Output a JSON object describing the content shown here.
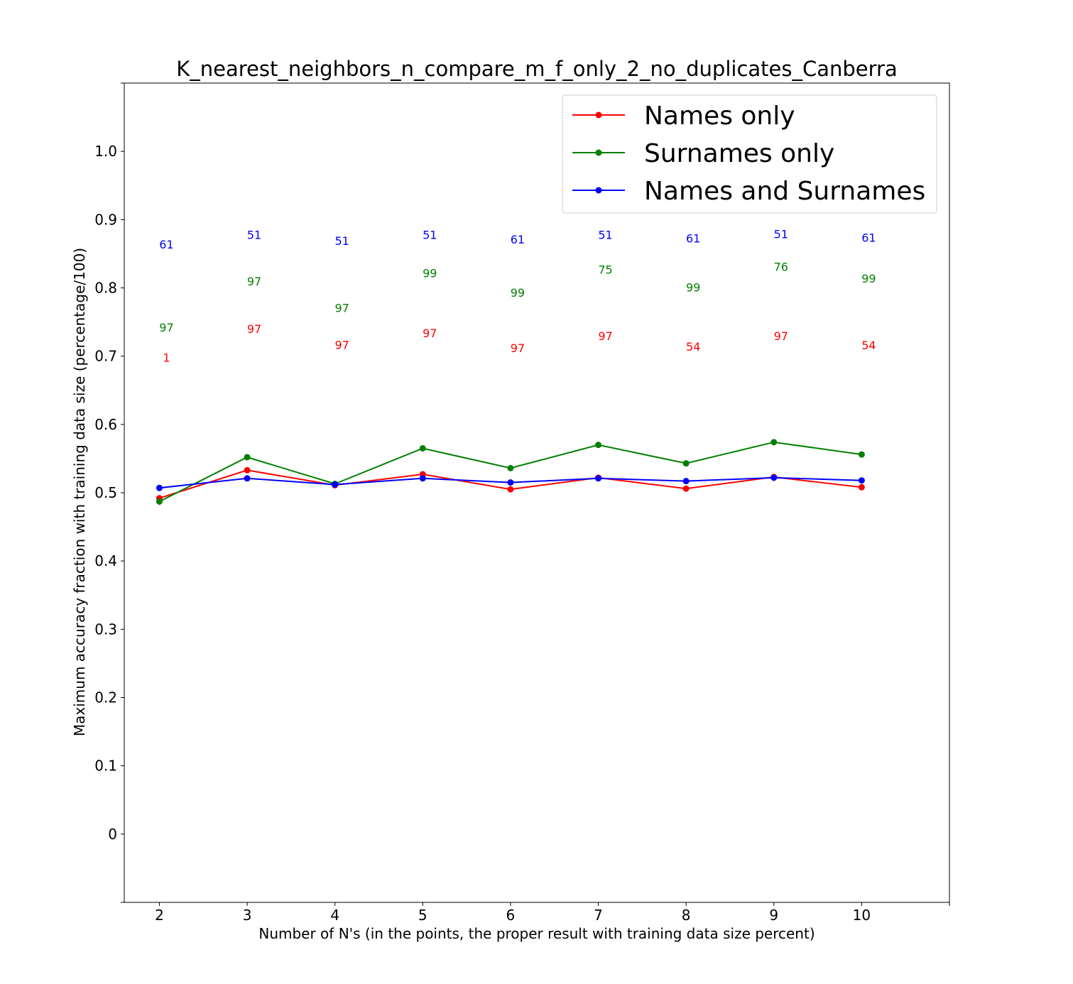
{
  "chart_data": {
    "type": "line",
    "title": "K_nearest_neighbors_n_compare_m_f_only_2_no_duplicates_Canberra",
    "xlabel": "Number of N's (in the points, the proper result with training data size percent)",
    "ylabel": "Maximum accuracy fraction with training data size (percentage/100)",
    "x": [
      2,
      3,
      4,
      5,
      6,
      7,
      8,
      9,
      10
    ],
    "xlim": [
      1.6,
      11
    ],
    "ylim": [
      -0.1,
      1.1
    ],
    "x_ticks": [
      "2",
      "3",
      "4",
      "5",
      "6",
      "7",
      "8",
      "9",
      "10"
    ],
    "y_ticks": [
      {
        "value": 0,
        "label": "0"
      },
      {
        "value": 0.1,
        "label": "0.1"
      },
      {
        "value": 0.2,
        "label": "0.2"
      },
      {
        "value": 0.3,
        "label": "0.3"
      },
      {
        "value": 0.4,
        "label": "0.4"
      },
      {
        "value": 0.5,
        "label": "0.5"
      },
      {
        "value": 0.6,
        "label": "0.6"
      },
      {
        "value": 0.7,
        "label": "0.7"
      },
      {
        "value": 0.8,
        "label": "0.8"
      },
      {
        "value": 0.9,
        "label": "0.9"
      },
      {
        "value": 1.0,
        "label": "1.0"
      }
    ],
    "grid": false,
    "legend_position": "top-right",
    "series": [
      {
        "name": "Names only",
        "color": "#ff0000",
        "values": [
          0.492,
          0.533,
          0.511,
          0.527,
          0.505,
          0.522,
          0.506,
          0.523,
          0.508
        ],
        "point_labels": [
          {
            "text": "1",
            "y": 0.697
          },
          {
            "text": "97",
            "y": 0.739
          },
          {
            "text": "97",
            "y": 0.716
          },
          {
            "text": "97",
            "y": 0.733
          },
          {
            "text": "97",
            "y": 0.711
          },
          {
            "text": "97",
            "y": 0.729
          },
          {
            "text": "54",
            "y": 0.713
          },
          {
            "text": "97",
            "y": 0.729
          },
          {
            "text": "54",
            "y": 0.715
          }
        ]
      },
      {
        "name": "Surnames only",
        "color": "#008000",
        "values": [
          0.487,
          0.552,
          0.513,
          0.565,
          0.536,
          0.57,
          0.543,
          0.574,
          0.556
        ],
        "point_labels": [
          {
            "text": "97",
            "y": 0.741
          },
          {
            "text": "97",
            "y": 0.809
          },
          {
            "text": "97",
            "y": 0.77
          },
          {
            "text": "99",
            "y": 0.821
          },
          {
            "text": "99",
            "y": 0.792
          },
          {
            "text": "75",
            "y": 0.826
          },
          {
            "text": "99",
            "y": 0.8
          },
          {
            "text": "76",
            "y": 0.83
          },
          {
            "text": "99",
            "y": 0.813
          }
        ]
      },
      {
        "name": "Names and Surnames",
        "color": "#0000ff",
        "values": [
          0.507,
          0.521,
          0.512,
          0.521,
          0.515,
          0.521,
          0.517,
          0.522,
          0.518
        ],
        "point_labels": [
          {
            "text": "61",
            "y": 0.863
          },
          {
            "text": "51",
            "y": 0.877
          },
          {
            "text": "51",
            "y": 0.868
          },
          {
            "text": "51",
            "y": 0.877
          },
          {
            "text": "61",
            "y": 0.87
          },
          {
            "text": "51",
            "y": 0.877
          },
          {
            "text": "61",
            "y": 0.872
          },
          {
            "text": "51",
            "y": 0.878
          },
          {
            "text": "61",
            "y": 0.873
          }
        ]
      }
    ]
  }
}
